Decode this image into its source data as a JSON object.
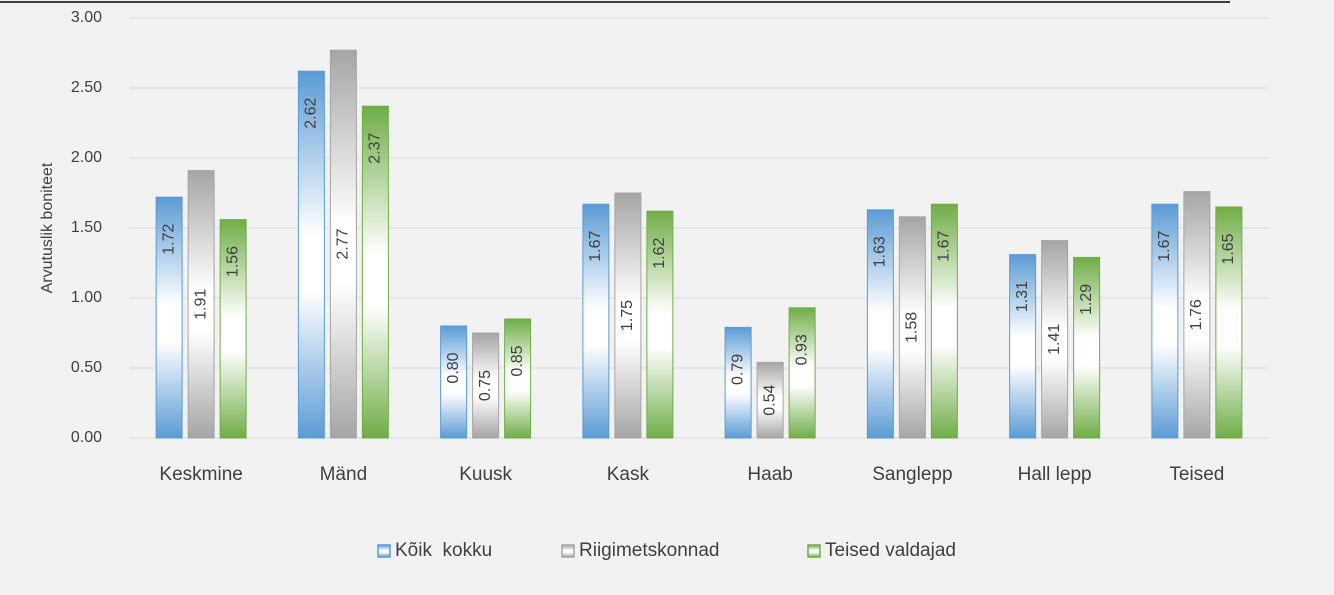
{
  "chart_data": {
    "type": "bar",
    "y_label": "Arvutuslik boniteet",
    "categories": [
      "Keskmine",
      "Mänd",
      "Kuusk",
      "Kask",
      "Haab",
      "Sanglepp",
      "Hall lepp",
      "Teised"
    ],
    "series": [
      {
        "name": "Kõik  kokku",
        "color": "#5b9bd5",
        "values": [
          1.72,
          2.62,
          0.8,
          1.67,
          0.79,
          1.63,
          1.31,
          1.67
        ],
        "value_labels": [
          "1.72",
          "2.62",
          "0.80",
          "1.67",
          "0.79",
          "1.63",
          "1.31",
          "1.67"
        ]
      },
      {
        "name": "Riigimetskonnad",
        "color": "#a5a5a5",
        "values": [
          1.91,
          2.77,
          0.75,
          1.75,
          0.54,
          1.58,
          1.41,
          1.76
        ],
        "value_labels": [
          "1.91",
          "2.77",
          "0.75",
          "1.75",
          "0.54",
          "1.58",
          "1.41",
          "1.76"
        ]
      },
      {
        "name": "Teised valdajad",
        "color": "#70ad47",
        "values": [
          1.56,
          2.37,
          0.85,
          1.62,
          0.93,
          1.67,
          1.29,
          1.65
        ],
        "value_labels": [
          "1.56",
          "2.37",
          "0.85",
          "1.62",
          "0.93",
          "1.67",
          "1.29",
          "1.65"
        ]
      }
    ],
    "ylim": [
      0,
      3
    ],
    "yticks": [
      {
        "value": 0,
        "label": "0.00"
      },
      {
        "value": 0.5,
        "label": "0.50"
      },
      {
        "value": 1,
        "label": "1.00"
      },
      {
        "value": 1.5,
        "label": "1.50"
      },
      {
        "value": 2,
        "label": "2.00"
      },
      {
        "value": 2.5,
        "label": "2.50"
      },
      {
        "value": 3,
        "label": "3.00"
      }
    ],
    "grid": true,
    "legend": "bottom"
  }
}
